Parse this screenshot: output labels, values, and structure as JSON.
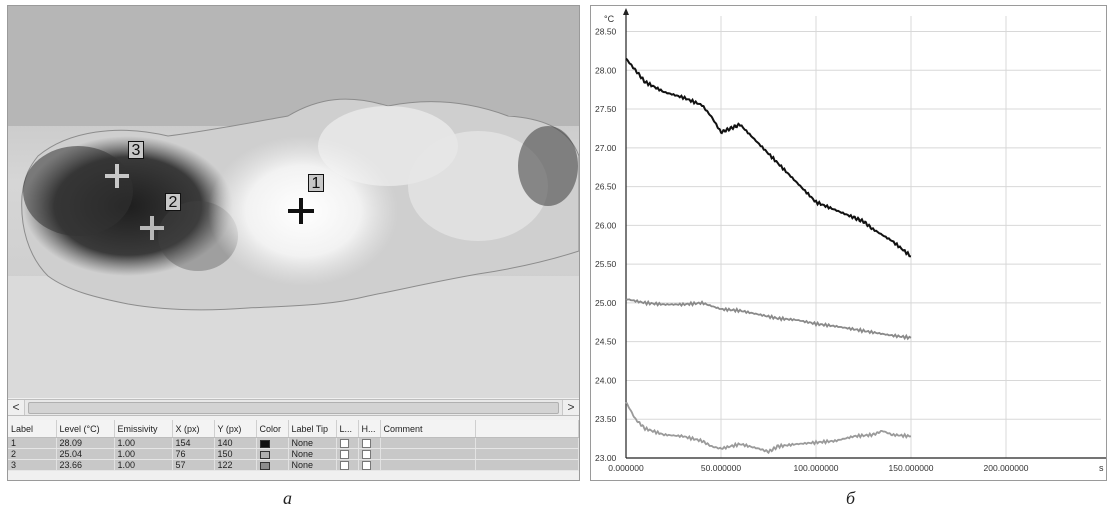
{
  "left_panel": {
    "markers": [
      {
        "label": "1",
        "color": "#111111"
      },
      {
        "label": "2",
        "color": "#b8b8b8"
      },
      {
        "label": "3",
        "color": "#c8c8c8"
      }
    ],
    "scroll": {
      "left_arrow": "<",
      "right_arrow": ">"
    },
    "table": {
      "columns": [
        "Label",
        "Level (°C)",
        "Emissivity",
        "X (px)",
        "Y (px)",
        "Color",
        "Label Tip",
        "L...",
        "H...",
        "Comment"
      ],
      "rows": [
        {
          "label": "1",
          "level": "28.09",
          "emissivity": "1.00",
          "x": "154",
          "y": "140",
          "color": "#111111",
          "label_tip": "None"
        },
        {
          "label": "2",
          "level": "25.04",
          "emissivity": "1.00",
          "x": "76",
          "y": "150",
          "color": "#b0b0b0",
          "label_tip": "None"
        },
        {
          "label": "3",
          "level": "23.66",
          "emissivity": "1.00",
          "x": "57",
          "y": "122",
          "color": "#8c8c8c",
          "label_tip": "None"
        }
      ]
    }
  },
  "chart_data": {
    "type": "line",
    "ylabel": "°C",
    "xlabel": "s",
    "xlim": [
      0,
      250
    ],
    "ylim": [
      23.0,
      28.7
    ],
    "x_ticks": [
      "0.000000",
      "50.000000",
      "100.000000",
      "150.000000",
      "200.000000"
    ],
    "y_ticks": [
      "23.00",
      "23.50",
      "24.00",
      "24.50",
      "25.00",
      "25.50",
      "26.00",
      "26.50",
      "27.00",
      "27.50",
      "28.00",
      "28.50"
    ],
    "grid": true,
    "series": [
      {
        "color": "#111111",
        "x": [
          0,
          5,
          10,
          20,
          30,
          40,
          45,
          50,
          55,
          60,
          70,
          80,
          90,
          100,
          110,
          120,
          125,
          130,
          140,
          150
        ],
        "y": [
          28.15,
          28.0,
          27.85,
          27.72,
          27.65,
          27.55,
          27.4,
          27.2,
          27.25,
          27.3,
          27.05,
          26.8,
          26.55,
          26.3,
          26.2,
          26.1,
          26.05,
          25.95,
          25.8,
          25.6
        ]
      },
      {
        "color": "#8a8a8a",
        "x": [
          0,
          10,
          20,
          30,
          40,
          50,
          60,
          70,
          80,
          90,
          100,
          110,
          120,
          130,
          140,
          150
        ],
        "y": [
          25.05,
          25.0,
          24.98,
          24.98,
          25.0,
          24.92,
          24.9,
          24.85,
          24.8,
          24.78,
          24.73,
          24.7,
          24.66,
          24.62,
          24.58,
          24.55
        ]
      },
      {
        "color": "#9a9a9a",
        "x": [
          0,
          5,
          10,
          20,
          30,
          40,
          45,
          50,
          60,
          70,
          75,
          80,
          90,
          100,
          110,
          120,
          130,
          135,
          140,
          150
        ],
        "y": [
          23.72,
          23.5,
          23.38,
          23.3,
          23.28,
          23.22,
          23.15,
          23.12,
          23.18,
          23.12,
          23.08,
          23.15,
          23.18,
          23.2,
          23.22,
          23.28,
          23.3,
          23.35,
          23.3,
          23.28
        ]
      }
    ]
  },
  "captions": {
    "left": "а",
    "right": "б"
  }
}
